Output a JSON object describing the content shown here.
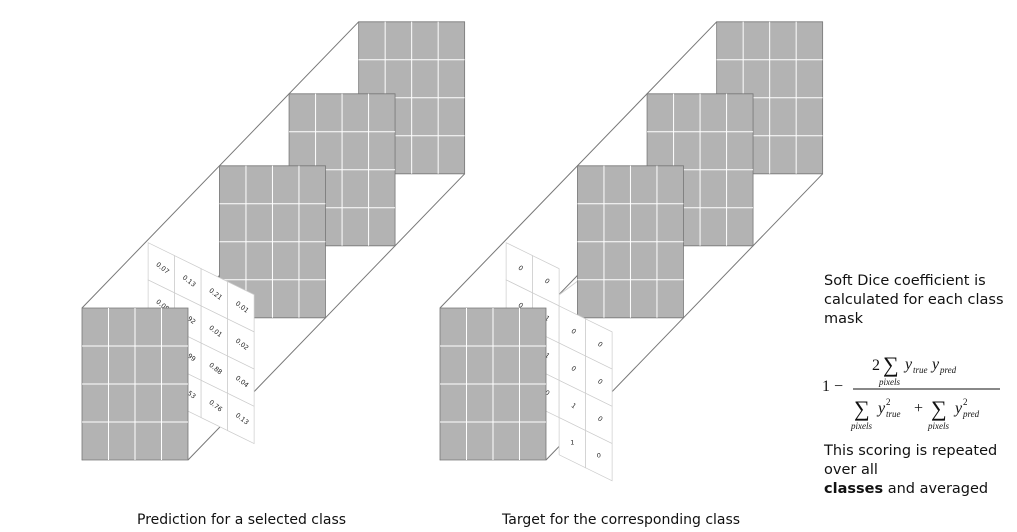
{
  "diagrams": [
    {
      "caption": "Prediction for a selected class",
      "matrix": [
        [
          "0.07",
          "0.13",
          "0.21",
          "0.01"
        ],
        [
          "0.08",
          "0.92",
          "0.01",
          "0.02"
        ],
        [
          "0.89",
          "0.99",
          "0.88",
          "0.04"
        ],
        [
          "0.02",
          "0.53",
          "0.76",
          "0.13"
        ]
      ]
    },
    {
      "caption": "Target for the corresponding class",
      "matrix": [
        [
          "0",
          "0",
          "",
          ""
        ],
        [
          "0",
          "1",
          "0",
          "0"
        ],
        [
          "1",
          "1",
          "0",
          "0"
        ],
        [
          "0",
          "0",
          "1",
          "0"
        ]
      ],
      "extra_row": [
        "",
        "",
        "1",
        "0"
      ]
    }
  ],
  "side_text": {
    "intro": "Soft Dice coefficient is calculated for each class mask",
    "formula": {
      "one_minus": "1 −",
      "numerator_factor": "2",
      "sum_sub": "pixels",
      "y": "y",
      "true_sub": "true",
      "pred_sub": "pred",
      "power": "2",
      "plus": "+"
    },
    "outro_pre": "This scoring is repeated over all",
    "outro_bold": "classes",
    "outro_post": "and averaged"
  },
  "colors": {
    "panel_fill": "#b3b3b3",
    "panel_grid": "#ffffff",
    "frame_line": "#777777",
    "cell_line": "#cccccc"
  }
}
